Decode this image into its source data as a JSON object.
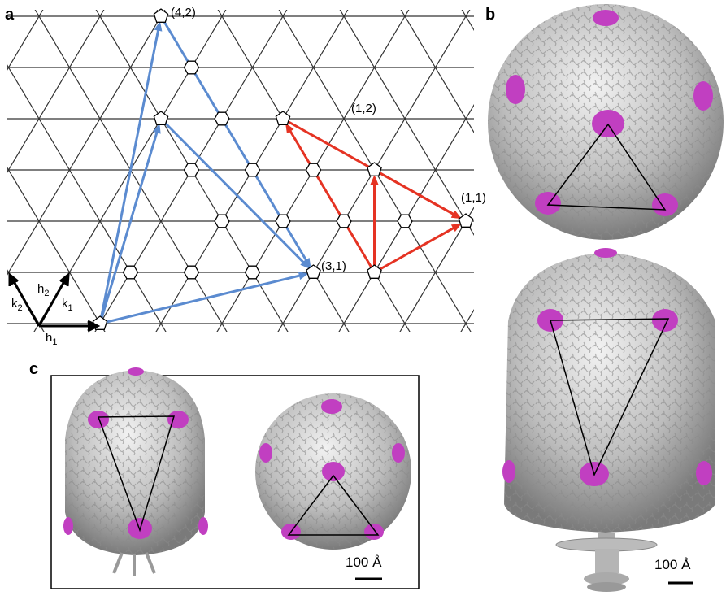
{
  "panels": {
    "a": "a",
    "b": "b",
    "c": "c"
  },
  "lattice_labels": [
    "(4,2)",
    "(1,2)",
    "(1,1)",
    "(3,1)"
  ],
  "vectors": [
    {
      "base": "h",
      "sub": "1"
    },
    {
      "base": "h",
      "sub": "2"
    },
    {
      "base": "k",
      "sub": "1"
    },
    {
      "base": "k",
      "sub": "2"
    }
  ],
  "scale_bars": [
    "100 Å",
    "100 Å"
  ]
}
